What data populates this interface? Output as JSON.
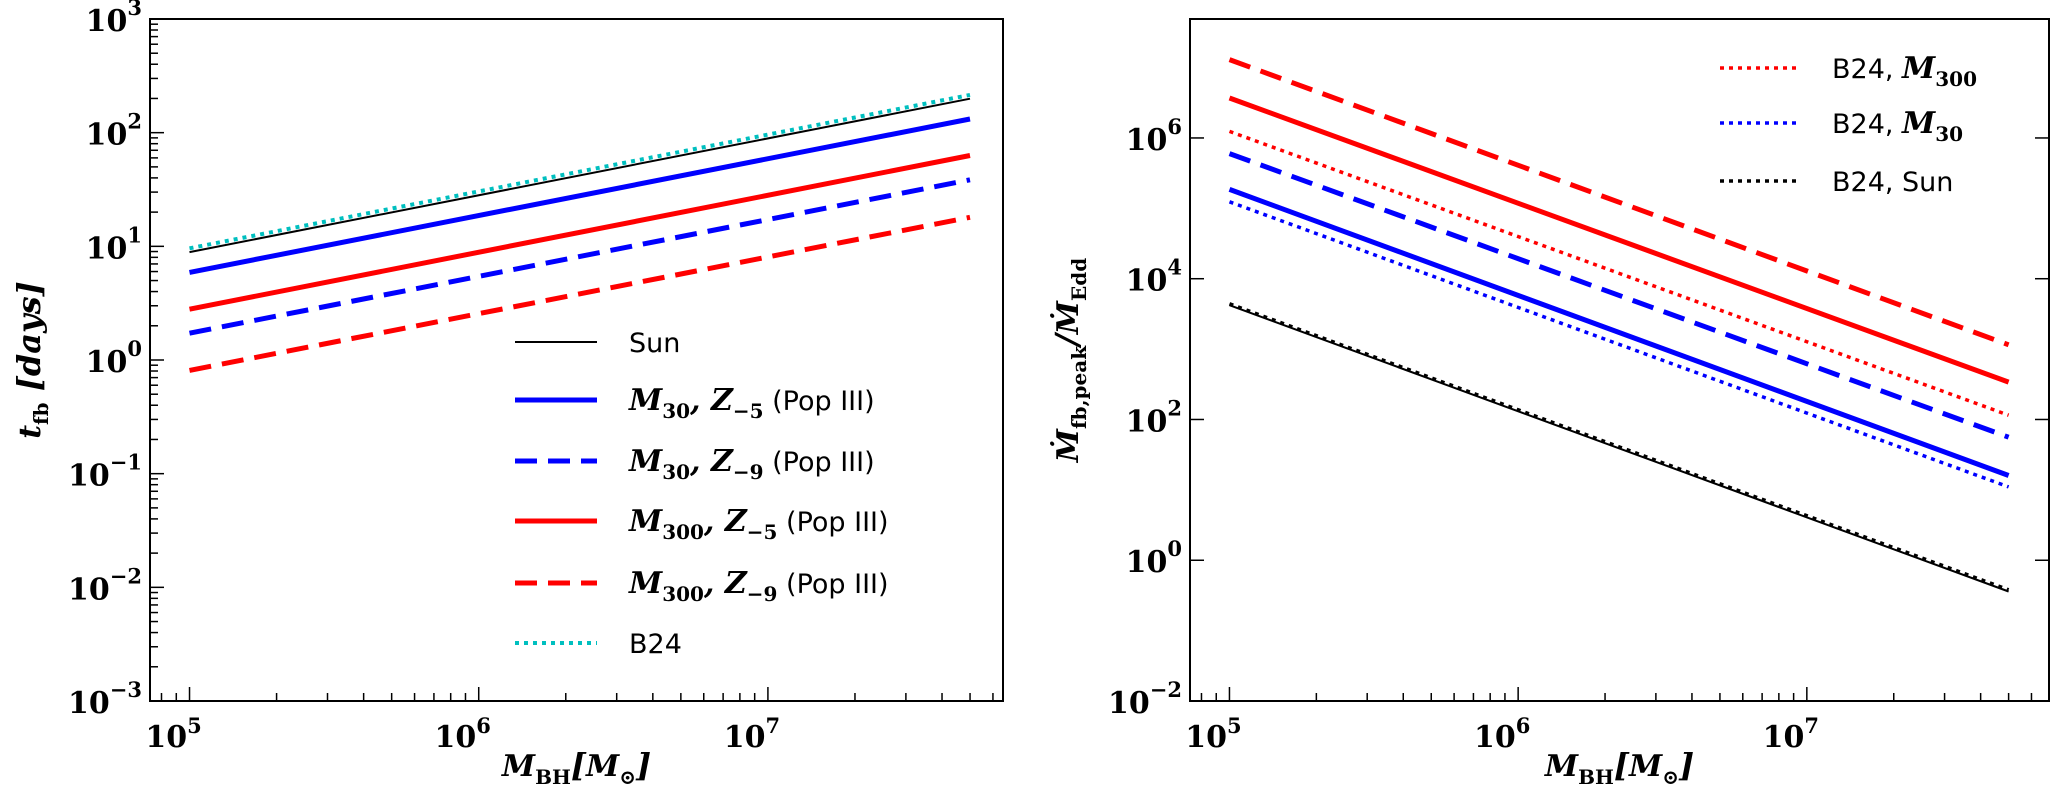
{
  "chart_data": [
    {
      "type": "line",
      "xscale": "log",
      "yscale": "log",
      "xlim": [
        73000,
        65000000
      ],
      "ylim": [
        0.001,
        1000
      ],
      "xticks": [
        {
          "value": 100000,
          "base": "10",
          "exp": "5"
        },
        {
          "value": 1000000,
          "base": "10",
          "exp": "6"
        },
        {
          "value": 10000000,
          "base": "10",
          "exp": "7"
        }
      ],
      "yticks": [
        {
          "value": 0.001,
          "base": "10",
          "exp": "−3"
        },
        {
          "value": 0.01,
          "base": "10",
          "exp": "−2"
        },
        {
          "value": 0.1,
          "base": "10",
          "exp": "−1"
        },
        {
          "value": 1,
          "base": "10",
          "exp": "0"
        },
        {
          "value": 10,
          "base": "10",
          "exp": "1"
        },
        {
          "value": 100,
          "base": "10",
          "exp": "2"
        },
        {
          "value": 1000,
          "base": "10",
          "exp": "3"
        }
      ],
      "xlabel": {
        "main": "M",
        "sub": "BH",
        "bracket_open": "[",
        "inner": "M",
        "inner_sub": "⊙",
        "bracket_close": "]"
      },
      "ylabel": {
        "main": "t",
        "sub": "fb",
        "suffix": " [days]"
      },
      "legend_position": "lower-right",
      "grid": false,
      "series": [
        {
          "name": {
            "text": "Sun"
          },
          "color": "#000000",
          "style": "solid",
          "width": 2,
          "x": [
            100000,
            50000000
          ],
          "y": [
            8.9,
            199
          ]
        },
        {
          "name": {
            "m": "M",
            "msub": "30",
            "z": "Z",
            "zsub": "−5",
            "suffix": " (Pop III)"
          },
          "color": "#0000ff",
          "style": "solid",
          "width": 5,
          "x": [
            100000,
            50000000
          ],
          "y": [
            5.9,
            132
          ]
        },
        {
          "name": {
            "m": "M",
            "msub": "30",
            "z": "Z",
            "zsub": "−9",
            "suffix": " (Pop III)"
          },
          "color": "#0000ff",
          "style": "dashed",
          "width": 5,
          "x": [
            100000,
            50000000
          ],
          "y": [
            1.72,
            38.5
          ]
        },
        {
          "name": {
            "m": "M",
            "msub": "300",
            "z": "Z",
            "zsub": "−5",
            "suffix": " (Pop III)"
          },
          "color": "#ff0000",
          "style": "solid",
          "width": 5,
          "x": [
            100000,
            50000000
          ],
          "y": [
            2.8,
            63
          ]
        },
        {
          "name": {
            "m": "M",
            "msub": "300",
            "z": "Z",
            "zsub": "−9",
            "suffix": " (Pop III)"
          },
          "color": "#ff0000",
          "style": "dashed",
          "width": 5,
          "x": [
            100000,
            50000000
          ],
          "y": [
            0.81,
            18
          ]
        },
        {
          "name": {
            "text": "B24"
          },
          "color": "#00bfbf",
          "style": "dotted",
          "width": 4,
          "x": [
            100000,
            50000000
          ],
          "y": [
            9.6,
            215
          ]
        }
      ]
    },
    {
      "type": "line",
      "xscale": "log",
      "yscale": "log",
      "xlim": [
        73000,
        69000000
      ],
      "ylim": [
        0.01,
        49000000
      ],
      "xticks": [
        {
          "value": 100000,
          "base": "10",
          "exp": "5"
        },
        {
          "value": 1000000,
          "base": "10",
          "exp": "6"
        },
        {
          "value": 10000000,
          "base": "10",
          "exp": "7"
        }
      ],
      "yticks": [
        {
          "value": 0.01,
          "base": "10",
          "exp": "−2"
        },
        {
          "value": 1,
          "base": "10",
          "exp": "0"
        },
        {
          "value": 100,
          "base": "10",
          "exp": "2"
        },
        {
          "value": 10000,
          "base": "10",
          "exp": "4"
        },
        {
          "value": 1000000,
          "base": "10",
          "exp": "6"
        }
      ],
      "xlabel": {
        "main": "M",
        "sub": "BH",
        "bracket_open": "[",
        "inner": "M",
        "inner_sub": "⊙",
        "bracket_close": "]"
      },
      "ylabel": {
        "main": "Ṁ",
        "sub": "fb,peak",
        "slash": "/",
        "main2": "Ṁ",
        "sub2": "Edd"
      },
      "legend_position": "upper-right",
      "grid": false,
      "series": [
        {
          "color": "#ff0000",
          "style": "dashed",
          "width": 5,
          "x": [
            100000,
            50000000
          ],
          "y": [
            13000000,
            1150
          ]
        },
        {
          "color": "#ff0000",
          "style": "solid",
          "width": 5,
          "x": [
            100000,
            50000000
          ],
          "y": [
            3700000,
            340
          ]
        },
        {
          "name": {
            "pre": "B24, ",
            "m": "M",
            "msub": "300"
          },
          "color": "#ff0000",
          "style": "dotted",
          "width": 3.5,
          "x": [
            100000,
            50000000
          ],
          "y": [
            1240000,
            115
          ]
        },
        {
          "color": "#0000ff",
          "style": "dashed",
          "width": 5,
          "x": [
            100000,
            50000000
          ],
          "y": [
            600000,
            56
          ]
        },
        {
          "color": "#0000ff",
          "style": "solid",
          "width": 5,
          "x": [
            100000,
            50000000
          ],
          "y": [
            186000,
            16
          ]
        },
        {
          "name": {
            "pre": "B24, ",
            "m": "M",
            "msub": "30"
          },
          "color": "#0000ff",
          "style": "dotted",
          "width": 3.5,
          "x": [
            100000,
            50000000
          ],
          "y": [
            124000,
            11
          ]
        },
        {
          "color": "#000000",
          "style": "solid",
          "width": 2,
          "x": [
            100000,
            50000000
          ],
          "y": [
            4200,
            0.36
          ]
        },
        {
          "name": {
            "text": "B24, Sun"
          },
          "color": "#000000",
          "style": "dotted",
          "width": 3.5,
          "x": [
            100000,
            50000000
          ],
          "y": [
            4400,
            0.38
          ]
        }
      ]
    }
  ]
}
